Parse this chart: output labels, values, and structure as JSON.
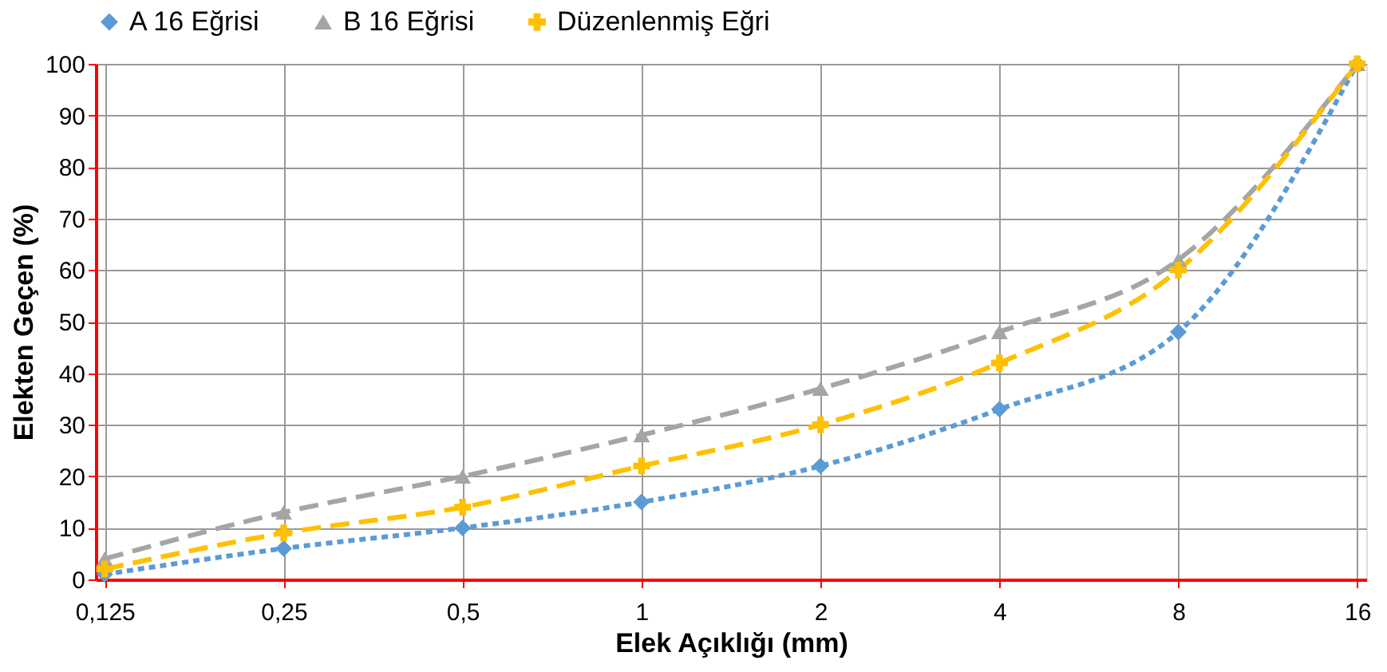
{
  "chart_data": {
    "type": "line",
    "xlabel": "Elek Açıklığı (mm)",
    "ylabel": "Elekten Geçen (%)",
    "categories": [
      "0,125",
      "0,25",
      "0,5",
      "1",
      "2",
      "4",
      "8",
      "16"
    ],
    "series": [
      {
        "name": "A 16 Eğrisi",
        "color": "#5b9bd5",
        "marker": "diamond",
        "line_style": "dotted",
        "values": [
          1,
          6,
          10,
          15,
          22,
          33,
          48,
          100
        ]
      },
      {
        "name": "B 16 Eğrisi",
        "color": "#a5a5a5",
        "marker": "triangle",
        "line_style": "dashed",
        "values": [
          4,
          13,
          20,
          28,
          37,
          48,
          62,
          100
        ]
      },
      {
        "name": "Düzenlenmiş Eğri",
        "color": "#ffc000",
        "marker": "cross",
        "line_style": "dashed",
        "values": [
          2,
          9,
          14,
          22,
          30,
          42,
          60,
          100
        ]
      }
    ],
    "ylim": [
      0,
      100
    ],
    "yticks": [
      0,
      10,
      20,
      30,
      40,
      50,
      60,
      70,
      80,
      90,
      100
    ],
    "grid": true,
    "legend": "top"
  }
}
